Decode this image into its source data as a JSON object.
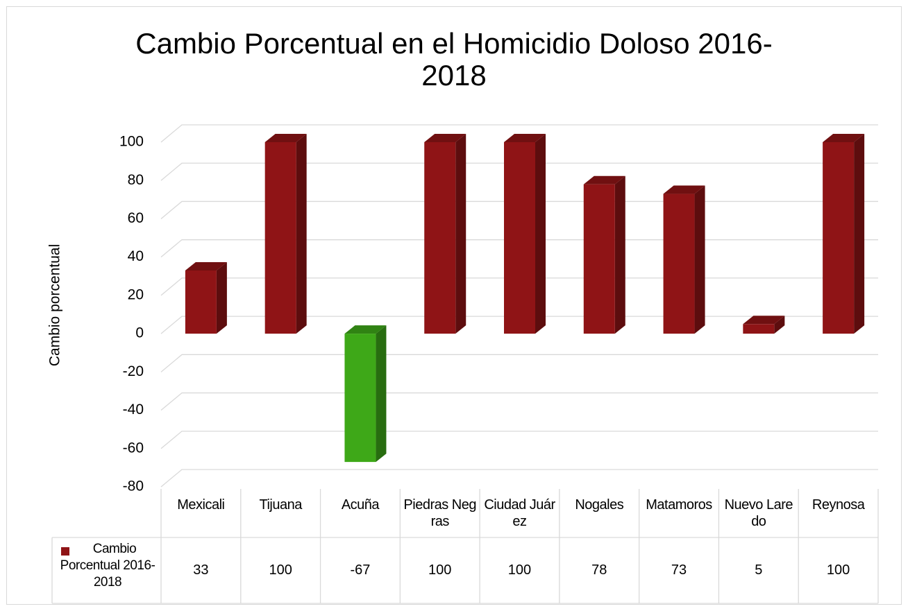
{
  "chart_data": {
    "type": "bar3d",
    "title": "Cambio Porcentual en el Homicidio Doloso 2016-2018",
    "ylabel": "Cambio porcentual",
    "categories": [
      "Mexicali",
      "Tijuana",
      "Acuña",
      "Piedras Negras",
      "Ciudad Juárez",
      "Nogales",
      "Matamoros",
      "Nuevo Laredo",
      "Reynosa"
    ],
    "series": [
      {
        "name": "Cambio Porcentual 2016-2018",
        "color": "#8f1416",
        "values": [
          33,
          100,
          -67,
          100,
          100,
          78,
          73,
          5,
          100
        ]
      }
    ],
    "negative_color": "#3ea818",
    "ylim": [
      -80,
      100
    ],
    "yticks": [
      -80,
      -60,
      -40,
      -20,
      0,
      20,
      40,
      60,
      80,
      100
    ],
    "grid": true
  }
}
